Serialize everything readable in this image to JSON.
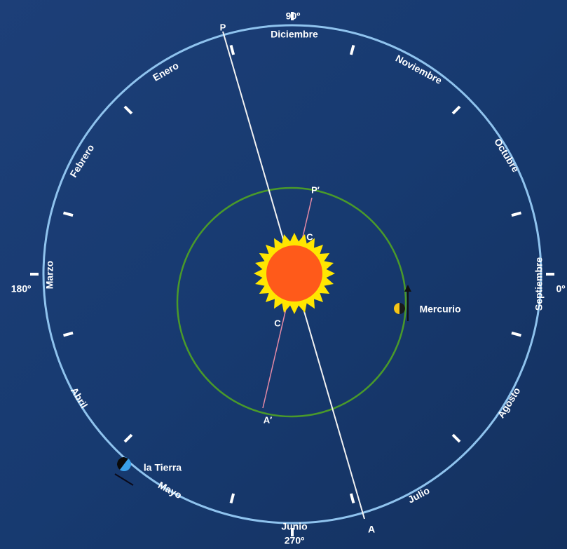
{
  "scale": {
    "top": "90º",
    "left": "180º",
    "bottom": "270º",
    "right": "0º"
  },
  "months": [
    "Diciembre",
    "Noviembre",
    "Octubre",
    "Septiembre",
    "Agosto",
    "Julio",
    "Junio",
    "Mayo",
    "Abril",
    "Marzo",
    "Febrero",
    "Enero"
  ],
  "points": {
    "perihelion": "P",
    "aphelion": "A",
    "mercury_perihelion": "P′",
    "mercury_aphelion": "A′",
    "center_upper": "C",
    "center_lower": "C"
  },
  "bodies": {
    "mercury": "Mercurio",
    "earth": "la Tierra"
  }
}
